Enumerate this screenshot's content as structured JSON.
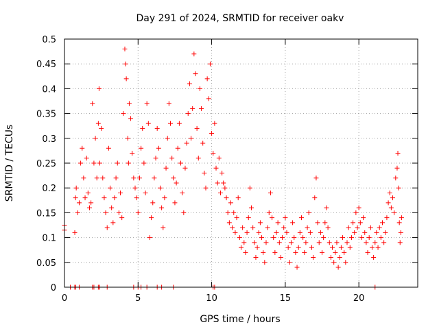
{
  "colors": {
    "series": "#ff0000",
    "axis": "#000000",
    "grid": "#a0a0a0",
    "background": "#ffffff"
  },
  "chart_data": {
    "type": "scatter",
    "title": "Day 291 of 2024, SRMTID for receiver oakv",
    "xlabel": "GPS time / hours",
    "ylabel": "SRMTID / TECUs",
    "xlim": [
      0,
      24
    ],
    "ylim": [
      0,
      0.5
    ],
    "grid": true,
    "marker": "+",
    "xticks": [
      0,
      5,
      10,
      15,
      20
    ],
    "xtick_labels": [
      "0",
      "5",
      "10",
      "15",
      "20"
    ],
    "yticks": [
      0,
      0.05,
      0.1,
      0.15,
      0.2,
      0.25,
      0.3,
      0.35,
      0.4,
      0.45,
      0.5
    ],
    "ytick_labels": [
      "0",
      "0.05",
      "0.1",
      "0.15",
      "0.2",
      "0.25",
      "0.3",
      "0.35",
      "0.4",
      "0.45",
      "0.5"
    ],
    "series": [
      {
        "name": "SRMTID",
        "points": [
          [
            0.0,
            0.125
          ],
          [
            0.0,
            0.115
          ],
          [
            0.4,
            0.0
          ],
          [
            0.7,
            0.0
          ],
          [
            0.75,
            0.0
          ],
          [
            1.0,
            0.0
          ],
          [
            1.9,
            0.0
          ],
          [
            2.0,
            0.0
          ],
          [
            2.3,
            0.0
          ],
          [
            2.4,
            0.0
          ],
          [
            2.9,
            0.0
          ],
          [
            4.7,
            0.0
          ],
          [
            5.0,
            0.0
          ],
          [
            5.2,
            0.0
          ],
          [
            5.6,
            0.0
          ],
          [
            6.3,
            0.0
          ],
          [
            6.6,
            0.0
          ],
          [
            7.4,
            0.0
          ],
          [
            10.1,
            0.0
          ],
          [
            10.2,
            0.0
          ],
          [
            21.1,
            0.0
          ],
          [
            0.7,
            0.11
          ],
          [
            0.75,
            0.18
          ],
          [
            0.8,
            0.2
          ],
          [
            0.9,
            0.15
          ],
          [
            1.0,
            0.17
          ],
          [
            1.1,
            0.25
          ],
          [
            1.2,
            0.28
          ],
          [
            1.3,
            0.22
          ],
          [
            1.4,
            0.18
          ],
          [
            1.5,
            0.26
          ],
          [
            1.6,
            0.19
          ],
          [
            1.7,
            0.16
          ],
          [
            1.8,
            0.17
          ],
          [
            1.9,
            0.37
          ],
          [
            2.0,
            0.25
          ],
          [
            2.1,
            0.3
          ],
          [
            2.2,
            0.22
          ],
          [
            2.3,
            0.33
          ],
          [
            2.35,
            0.4
          ],
          [
            2.4,
            0.25
          ],
          [
            2.5,
            0.32
          ],
          [
            2.6,
            0.22
          ],
          [
            2.7,
            0.18
          ],
          [
            2.8,
            0.15
          ],
          [
            2.9,
            0.12
          ],
          [
            3.0,
            0.28
          ],
          [
            3.1,
            0.2
          ],
          [
            3.2,
            0.16
          ],
          [
            3.3,
            0.13
          ],
          [
            3.4,
            0.18
          ],
          [
            3.5,
            0.22
          ],
          [
            3.6,
            0.25
          ],
          [
            3.7,
            0.15
          ],
          [
            3.8,
            0.19
          ],
          [
            3.9,
            0.14
          ],
          [
            4.0,
            0.35
          ],
          [
            4.1,
            0.48
          ],
          [
            4.15,
            0.45
          ],
          [
            4.2,
            0.42
          ],
          [
            4.3,
            0.3
          ],
          [
            4.35,
            0.25
          ],
          [
            4.4,
            0.37
          ],
          [
            4.5,
            0.34
          ],
          [
            4.6,
            0.27
          ],
          [
            4.7,
            0.22
          ],
          [
            4.8,
            0.2
          ],
          [
            4.9,
            0.18
          ],
          [
            5.0,
            0.15
          ],
          [
            5.1,
            0.22
          ],
          [
            5.2,
            0.28
          ],
          [
            5.3,
            0.32
          ],
          [
            5.4,
            0.25
          ],
          [
            5.5,
            0.19
          ],
          [
            5.6,
            0.37
          ],
          [
            5.7,
            0.33
          ],
          [
            5.8,
            0.1
          ],
          [
            5.9,
            0.14
          ],
          [
            6.0,
            0.17
          ],
          [
            6.1,
            0.22
          ],
          [
            6.2,
            0.26
          ],
          [
            6.3,
            0.32
          ],
          [
            6.4,
            0.28
          ],
          [
            6.5,
            0.2
          ],
          [
            6.6,
            0.16
          ],
          [
            6.7,
            0.12
          ],
          [
            6.8,
            0.18
          ],
          [
            6.9,
            0.24
          ],
          [
            7.0,
            0.3
          ],
          [
            7.1,
            0.37
          ],
          [
            7.2,
            0.33
          ],
          [
            7.3,
            0.26
          ],
          [
            7.4,
            0.22
          ],
          [
            7.5,
            0.17
          ],
          [
            7.6,
            0.21
          ],
          [
            7.7,
            0.28
          ],
          [
            7.8,
            0.33
          ],
          [
            7.9,
            0.25
          ],
          [
            8.0,
            0.19
          ],
          [
            8.1,
            0.15
          ],
          [
            8.2,
            0.24
          ],
          [
            8.3,
            0.29
          ],
          [
            8.4,
            0.35
          ],
          [
            8.5,
            0.41
          ],
          [
            8.6,
            0.3
          ],
          [
            8.7,
            0.36
          ],
          [
            8.8,
            0.47
          ],
          [
            8.9,
            0.43
          ],
          [
            9.0,
            0.32
          ],
          [
            9.1,
            0.26
          ],
          [
            9.2,
            0.4
          ],
          [
            9.3,
            0.36
          ],
          [
            9.4,
            0.29
          ],
          [
            9.5,
            0.23
          ],
          [
            9.6,
            0.2
          ],
          [
            9.7,
            0.42
          ],
          [
            9.8,
            0.38
          ],
          [
            9.9,
            0.45
          ],
          [
            10.0,
            0.31
          ],
          [
            10.1,
            0.27
          ],
          [
            10.2,
            0.33
          ],
          [
            10.3,
            0.24
          ],
          [
            10.4,
            0.21
          ],
          [
            10.5,
            0.26
          ],
          [
            10.6,
            0.19
          ],
          [
            10.7,
            0.23
          ],
          [
            10.8,
            0.21
          ],
          [
            10.9,
            0.2
          ],
          [
            11.0,
            0.18
          ],
          [
            11.1,
            0.15
          ],
          [
            11.2,
            0.13
          ],
          [
            11.3,
            0.17
          ],
          [
            11.4,
            0.12
          ],
          [
            11.5,
            0.15
          ],
          [
            11.6,
            0.11
          ],
          [
            11.7,
            0.14
          ],
          [
            11.8,
            0.18
          ],
          [
            11.9,
            0.1
          ],
          [
            12.0,
            0.08
          ],
          [
            12.1,
            0.12
          ],
          [
            12.2,
            0.09
          ],
          [
            12.3,
            0.07
          ],
          [
            12.4,
            0.11
          ],
          [
            12.5,
            0.14
          ],
          [
            12.6,
            0.2
          ],
          [
            12.7,
            0.16
          ],
          [
            12.8,
            0.12
          ],
          [
            12.9,
            0.09
          ],
          [
            13.0,
            0.06
          ],
          [
            13.1,
            0.08
          ],
          [
            13.2,
            0.11
          ],
          [
            13.3,
            0.13
          ],
          [
            13.4,
            0.1
          ],
          [
            13.5,
            0.07
          ],
          [
            13.6,
            0.05
          ],
          [
            13.7,
            0.09
          ],
          [
            13.8,
            0.12
          ],
          [
            13.9,
            0.15
          ],
          [
            14.0,
            0.19
          ],
          [
            14.1,
            0.14
          ],
          [
            14.2,
            0.1
          ],
          [
            14.3,
            0.07
          ],
          [
            14.4,
            0.11
          ],
          [
            14.5,
            0.13
          ],
          [
            14.6,
            0.09
          ],
          [
            14.7,
            0.06
          ],
          [
            14.8,
            0.1
          ],
          [
            14.9,
            0.12
          ],
          [
            15.0,
            0.14
          ],
          [
            15.1,
            0.11
          ],
          [
            15.2,
            0.08
          ],
          [
            15.3,
            0.05
          ],
          [
            15.4,
            0.09
          ],
          [
            15.5,
            0.13
          ],
          [
            15.6,
            0.1
          ],
          [
            15.7,
            0.07
          ],
          [
            15.8,
            0.04
          ],
          [
            15.9,
            0.08
          ],
          [
            16.0,
            0.11
          ],
          [
            16.1,
            0.14
          ],
          [
            16.2,
            0.1
          ],
          [
            16.3,
            0.07
          ],
          [
            16.4,
            0.09
          ],
          [
            16.5,
            0.12
          ],
          [
            16.6,
            0.15
          ],
          [
            16.7,
            0.11
          ],
          [
            16.8,
            0.08
          ],
          [
            16.9,
            0.06
          ],
          [
            17.0,
            0.18
          ],
          [
            17.1,
            0.22
          ],
          [
            17.2,
            0.13
          ],
          [
            17.3,
            0.09
          ],
          [
            17.4,
            0.11
          ],
          [
            17.5,
            0.07
          ],
          [
            17.6,
            0.1
          ],
          [
            17.7,
            0.13
          ],
          [
            17.8,
            0.16
          ],
          [
            17.9,
            0.12
          ],
          [
            18.0,
            0.09
          ],
          [
            18.1,
            0.06
          ],
          [
            18.2,
            0.08
          ],
          [
            18.3,
            0.05
          ],
          [
            18.4,
            0.07
          ],
          [
            18.5,
            0.09
          ],
          [
            18.6,
            0.04
          ],
          [
            18.7,
            0.06
          ],
          [
            18.8,
            0.08
          ],
          [
            18.9,
            0.1
          ],
          [
            19.0,
            0.07
          ],
          [
            19.1,
            0.05
          ],
          [
            19.2,
            0.09
          ],
          [
            19.3,
            0.12
          ],
          [
            19.4,
            0.08
          ],
          [
            19.5,
            0.1
          ],
          [
            19.6,
            0.13
          ],
          [
            19.7,
            0.11
          ],
          [
            19.8,
            0.15
          ],
          [
            19.9,
            0.12
          ],
          [
            20.0,
            0.16
          ],
          [
            20.1,
            0.13
          ],
          [
            20.2,
            0.1
          ],
          [
            20.3,
            0.14
          ],
          [
            20.4,
            0.11
          ],
          [
            20.5,
            0.09
          ],
          [
            20.6,
            0.07
          ],
          [
            20.7,
            0.1
          ],
          [
            20.8,
            0.12
          ],
          [
            20.9,
            0.08
          ],
          [
            21.0,
            0.06
          ],
          [
            21.1,
            0.09
          ],
          [
            21.2,
            0.11
          ],
          [
            21.3,
            0.08
          ],
          [
            21.4,
            0.12
          ],
          [
            21.5,
            0.1
          ],
          [
            21.6,
            0.13
          ],
          [
            21.7,
            0.09
          ],
          [
            21.8,
            0.11
          ],
          [
            21.9,
            0.14
          ],
          [
            22.0,
            0.17
          ],
          [
            22.1,
            0.19
          ],
          [
            22.2,
            0.16
          ],
          [
            22.3,
            0.18
          ],
          [
            22.4,
            0.15
          ],
          [
            22.5,
            0.22
          ],
          [
            22.6,
            0.24
          ],
          [
            22.65,
            0.27
          ],
          [
            22.7,
            0.2
          ],
          [
            22.75,
            0.13
          ],
          [
            22.8,
            0.09
          ],
          [
            22.85,
            0.11
          ],
          [
            22.9,
            0.14
          ]
        ]
      }
    ]
  }
}
